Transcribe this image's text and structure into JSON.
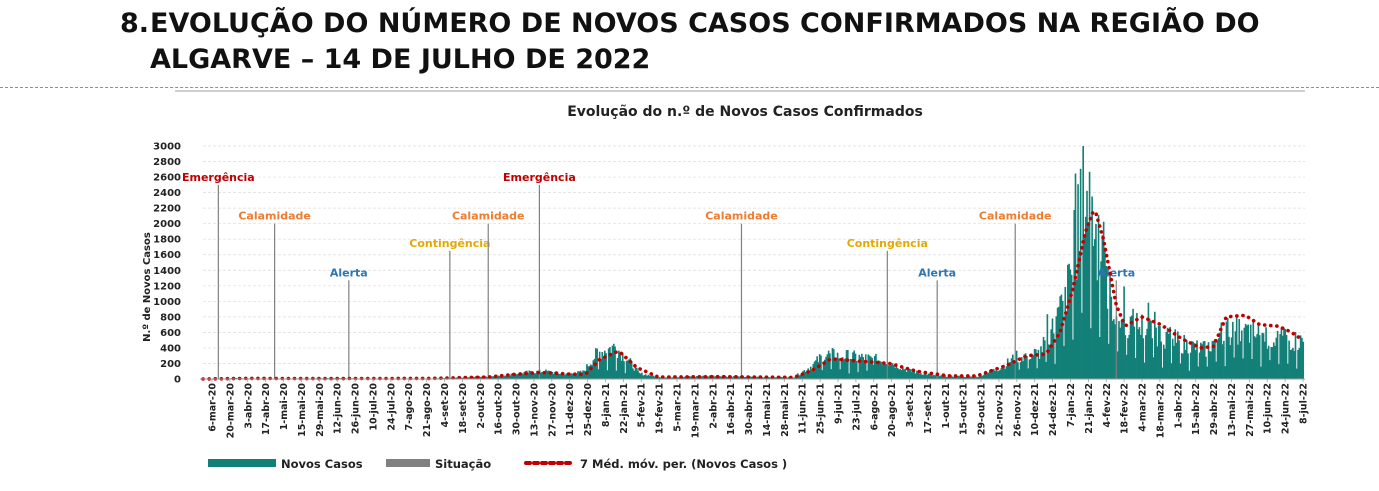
{
  "page": {
    "heading_number": "8.",
    "heading_line1": "EVOLUÇÃO DO NÚMERO DE NOVOS CASOS CONFIRMADOS NA REGIÃO DO",
    "heading_line2": "ALGARVE – 14 DE JULHO DE 2022"
  },
  "chart_data": {
    "type": "bar",
    "title": "Evolução do n.º de Novos Casos Confirmados",
    "ylabel": "N.º de Novos Casos",
    "xlabel": "",
    "ylim": [
      0,
      3000
    ],
    "yticks": [
      0,
      200,
      400,
      600,
      800,
      1000,
      1200,
      1400,
      1600,
      1800,
      2000,
      2200,
      2400,
      2600,
      2800,
      3000
    ],
    "grid": true,
    "x_range": [
      "2020-03-06",
      "2022-07-14"
    ],
    "xtick_labels": [
      "6-mar-20",
      "20-mar-20",
      "3-abr-20",
      "17-abr-20",
      "1-mai-20",
      "15-mai-20",
      "29-mai-20",
      "12-jun-20",
      "26-jun-20",
      "10-jul-20",
      "24-jul-20",
      "7-ago-20",
      "21-ago-20",
      "4-set-20",
      "18-set-20",
      "2-out-20",
      "16-out-20",
      "30-out-20",
      "13-nov-20",
      "27-nov-20",
      "11-dez-20",
      "25-dez-20",
      "8-jan-21",
      "22-jan-21",
      "5-fev-21",
      "19-fev-21",
      "5-mar-21",
      "19-mar-21",
      "2-abr-21",
      "16-abr-21",
      "30-abr-21",
      "14-mai-21",
      "28-mai-21",
      "11-jun-21",
      "25-jun-21",
      "9-jul-21",
      "23-jul-21",
      "6-ago-21",
      "20-ago-21",
      "3-set-21",
      "17-set-21",
      "1-out-21",
      "15-out-21",
      "29-out-21",
      "12-nov-21",
      "26-nov-21",
      "10-dez-21",
      "24-dez-21",
      "7-jan-22",
      "21-jan-22",
      "4-fev-22",
      "18-fev-22",
      "4-mar-22",
      "18-mar-22",
      "1-abr-22",
      "15-abr-22",
      "29-abr-22",
      "13-mai-22",
      "27-mai-22",
      "10-jun-22",
      "24-jun-22",
      "8-jul-22"
    ],
    "series": [
      {
        "name": "Novos Casos",
        "kind": "bar",
        "color": "#138078",
        "points": [
          [
            "2020-03-06",
            0
          ],
          [
            "2020-04-01",
            10
          ],
          [
            "2020-05-01",
            3
          ],
          [
            "2020-06-15",
            10
          ],
          [
            "2020-07-15",
            5
          ],
          [
            "2020-09-01",
            5
          ],
          [
            "2020-10-01",
            25
          ],
          [
            "2020-10-25",
            40
          ],
          [
            "2020-11-10",
            80
          ],
          [
            "2020-11-28",
            100
          ],
          [
            "2020-12-15",
            60
          ],
          [
            "2020-12-28",
            90
          ],
          [
            "2021-01-08",
            330
          ],
          [
            "2021-01-22",
            420
          ],
          [
            "2021-02-01",
            250
          ],
          [
            "2021-02-10",
            70
          ],
          [
            "2021-03-01",
            20
          ],
          [
            "2021-04-10",
            40
          ],
          [
            "2021-05-15",
            25
          ],
          [
            "2021-06-11",
            25
          ],
          [
            "2021-06-25",
            170
          ],
          [
            "2021-07-05",
            320
          ],
          [
            "2021-07-20",
            300
          ],
          [
            "2021-08-10",
            260
          ],
          [
            "2021-08-25",
            220
          ],
          [
            "2021-09-10",
            100
          ],
          [
            "2021-10-01",
            40
          ],
          [
            "2021-11-01",
            30
          ],
          [
            "2021-11-20",
            150
          ],
          [
            "2021-12-01",
            280
          ],
          [
            "2021-12-20",
            340
          ],
          [
            "2022-01-01",
            700
          ],
          [
            "2022-01-10",
            1100
          ],
          [
            "2022-01-17",
            1600
          ],
          [
            "2022-01-22",
            2480
          ],
          [
            "2022-01-28",
            2300
          ],
          [
            "2022-02-05",
            1600
          ],
          [
            "2022-02-18",
            800
          ],
          [
            "2022-03-01",
            720
          ],
          [
            "2022-03-15",
            650
          ],
          [
            "2022-04-01",
            520
          ],
          [
            "2022-04-15",
            430
          ],
          [
            "2022-04-29",
            380
          ],
          [
            "2022-05-13",
            620
          ],
          [
            "2022-05-27",
            620
          ],
          [
            "2022-06-10",
            570
          ],
          [
            "2022-06-24",
            520
          ],
          [
            "2022-07-14",
            480
          ]
        ]
      },
      {
        "name": "Situação",
        "kind": "bar",
        "color": "#808080",
        "markers": [
          {
            "date": "2020-03-18",
            "value": 2500,
            "label": "Emergência",
            "color": "#c00000"
          },
          {
            "date": "2020-05-01",
            "value": 2000,
            "label": "Calamidade",
            "color": "#ed7d31"
          },
          {
            "date": "2020-06-28",
            "value": 1270,
            "label": "Alerta",
            "color": "#2e75b6"
          },
          {
            "date": "2020-09-15",
            "value": 1650,
            "label": "Contingência",
            "color": "#e6a800"
          },
          {
            "date": "2020-10-15",
            "value": 2000,
            "label": "Calamidade",
            "color": "#ed7d31"
          },
          {
            "date": "2020-11-24",
            "value": 2500,
            "label": "Emergência",
            "color": "#c00000"
          },
          {
            "date": "2021-05-01",
            "value": 2000,
            "label": "Calamidade",
            "color": "#ed7d31"
          },
          {
            "date": "2021-08-23",
            "value": 1650,
            "label": "Contingência",
            "color": "#e6a800"
          },
          {
            "date": "2021-10-01",
            "value": 1270,
            "label": "Alerta",
            "color": "#2e75b6"
          },
          {
            "date": "2021-12-01",
            "value": 2000,
            "label": "Calamidade",
            "color": "#ed7d31"
          },
          {
            "date": "2022-02-18",
            "value": 1270,
            "label": "Alerta",
            "color": "#2e75b6"
          }
        ]
      },
      {
        "name": "7 Méd. móv. per. (Novos Casos )",
        "kind": "line",
        "color": "#c00000",
        "points": [
          [
            "2020-03-06",
            0
          ],
          [
            "2020-04-10",
            8
          ],
          [
            "2020-06-01",
            5
          ],
          [
            "2020-09-01",
            8
          ],
          [
            "2020-10-15",
            25
          ],
          [
            "2020-11-05",
            60
          ],
          [
            "2020-11-25",
            85
          ],
          [
            "2020-12-15",
            65
          ],
          [
            "2020-12-30",
            60
          ],
          [
            "2021-01-10",
            250
          ],
          [
            "2021-01-25",
            360
          ],
          [
            "2021-02-08",
            150
          ],
          [
            "2021-02-25",
            25
          ],
          [
            "2021-04-15",
            30
          ],
          [
            "2021-06-11",
            20
          ],
          [
            "2021-06-25",
            110
          ],
          [
            "2021-07-10",
            260
          ],
          [
            "2021-08-01",
            230
          ],
          [
            "2021-08-25",
            200
          ],
          [
            "2021-09-15",
            100
          ],
          [
            "2021-10-10",
            40
          ],
          [
            "2021-11-01",
            40
          ],
          [
            "2021-11-25",
            180
          ],
          [
            "2021-12-10",
            300
          ],
          [
            "2021-12-25",
            320
          ],
          [
            "2022-01-05",
            600
          ],
          [
            "2022-01-15",
            1150
          ],
          [
            "2022-01-25",
            1900
          ],
          [
            "2022-02-01",
            2200
          ],
          [
            "2022-02-08",
            1800
          ],
          [
            "2022-02-18",
            950
          ],
          [
            "2022-02-25",
            680
          ],
          [
            "2022-03-10",
            800
          ],
          [
            "2022-03-25",
            700
          ],
          [
            "2022-04-10",
            520
          ],
          [
            "2022-04-25",
            400
          ],
          [
            "2022-05-05",
            420
          ],
          [
            "2022-05-15",
            800
          ],
          [
            "2022-05-30",
            820
          ],
          [
            "2022-06-10",
            700
          ],
          [
            "2022-06-25",
            680
          ],
          [
            "2022-07-05",
            600
          ],
          [
            "2022-07-14",
            500
          ]
        ]
      }
    ],
    "legend": {
      "position": "bottom-left",
      "entries": [
        "Novos Casos",
        "Situação",
        "7 Méd. móv. per. (Novos Casos )"
      ]
    }
  }
}
